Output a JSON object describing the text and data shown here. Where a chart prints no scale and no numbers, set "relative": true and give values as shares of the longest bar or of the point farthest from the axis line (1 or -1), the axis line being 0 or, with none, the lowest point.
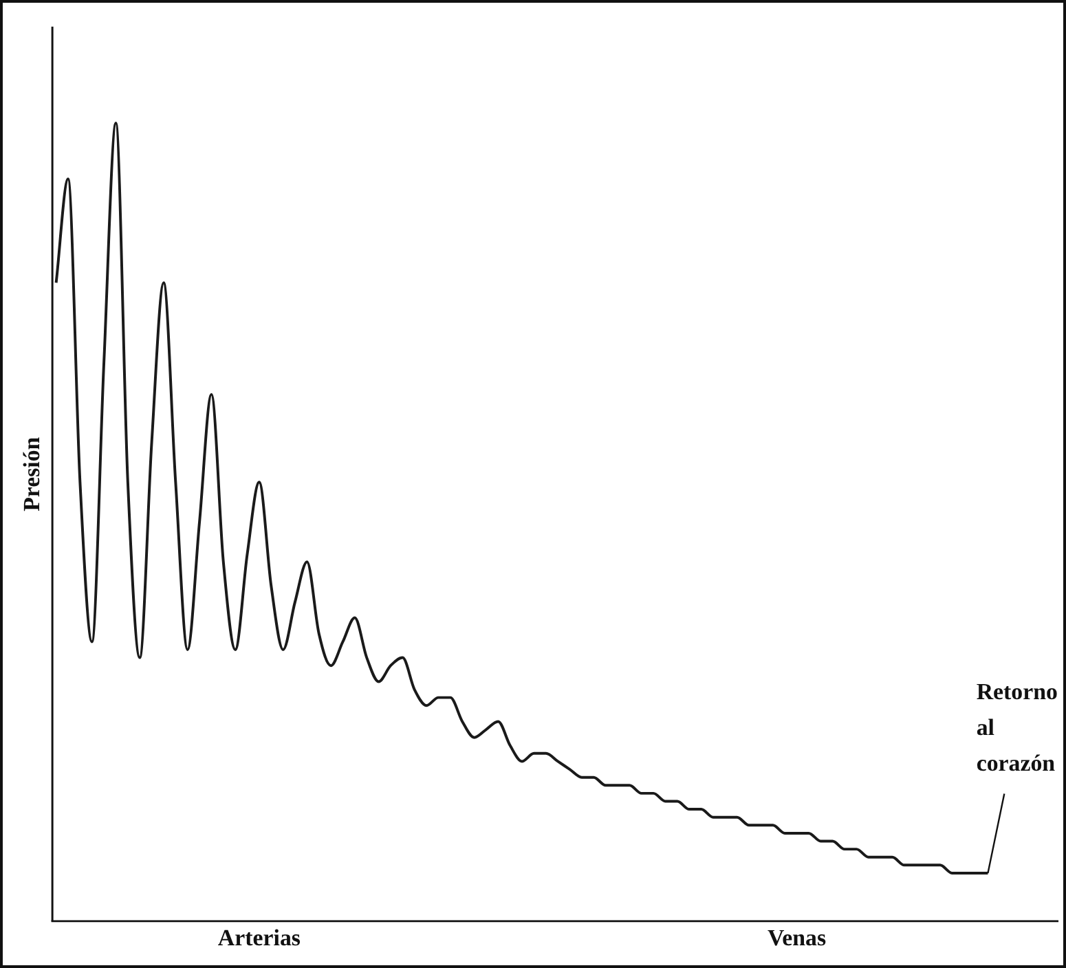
{
  "chart_data": {
    "type": "line",
    "relative": true,
    "ylabel": "Presión",
    "color": "#1a1a1a",
    "marker": "none",
    "grid": false,
    "legend": false,
    "categories": [
      null,
      null,
      null,
      null,
      null,
      null,
      null,
      null,
      null,
      null,
      null,
      null,
      null,
      null,
      null,
      null,
      null,
      "Arterias",
      null,
      null,
      null,
      null,
      null,
      null,
      null,
      null,
      null,
      null,
      null,
      null,
      null,
      null,
      null,
      null,
      null,
      null,
      null,
      null,
      null,
      null,
      null,
      null,
      null,
      null,
      null,
      null,
      null,
      null,
      null,
      null,
      null,
      null,
      null,
      null,
      null,
      null,
      null,
      null,
      null,
      null,
      null,
      null,
      "Venas",
      null,
      null,
      null,
      null,
      null,
      null,
      null,
      null,
      null,
      null,
      null,
      null,
      null,
      null,
      null,
      null
    ],
    "values": [
      0.8,
      0.93,
      0.55,
      0.35,
      0.7,
      1.0,
      0.55,
      0.33,
      0.6,
      0.8,
      0.55,
      0.34,
      0.5,
      0.66,
      0.45,
      0.34,
      0.46,
      0.55,
      0.42,
      0.34,
      0.4,
      0.45,
      0.36,
      0.32,
      0.35,
      0.38,
      0.33,
      0.3,
      0.32,
      0.33,
      0.29,
      0.27,
      0.28,
      0.28,
      0.25,
      0.23,
      0.24,
      0.25,
      0.22,
      0.2,
      0.21,
      0.21,
      0.2,
      0.19,
      0.18,
      0.18,
      0.17,
      0.17,
      0.17,
      0.16,
      0.16,
      0.15,
      0.15,
      0.14,
      0.14,
      0.13,
      0.13,
      0.13,
      0.12,
      0.12,
      0.12,
      0.11,
      0.11,
      0.11,
      0.1,
      0.1,
      0.09,
      0.09,
      0.08,
      0.08,
      0.08,
      0.07,
      0.07,
      0.07,
      0.07,
      0.06,
      0.06,
      0.06,
      0.06
    ],
    "annotations": [
      "Retorno al corazón"
    ]
  }
}
